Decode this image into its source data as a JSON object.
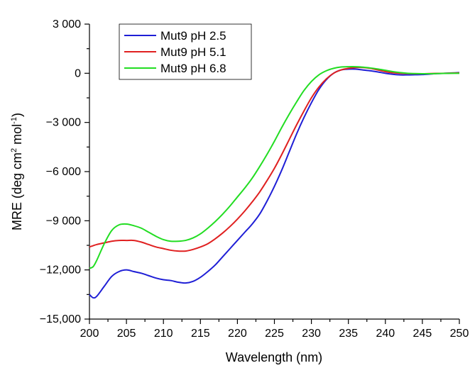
{
  "chart_data": {
    "type": "line",
    "xlabel": "Wavelength (nm)",
    "ylabel_main": "MRE (deg cm",
    "ylabel_sup1": "2",
    "ylabel_mid": " mol",
    "ylabel_sup2": "-1",
    "ylabel_end": ")",
    "xlim": [
      200,
      250
    ],
    "ylim": [
      -15000,
      3000
    ],
    "x_ticks": [
      {
        "value": 200,
        "label": "200"
      },
      {
        "value": 205,
        "label": "205"
      },
      {
        "value": 210,
        "label": "210"
      },
      {
        "value": 215,
        "label": "215"
      },
      {
        "value": 220,
        "label": "220"
      },
      {
        "value": 225,
        "label": "225"
      },
      {
        "value": 230,
        "label": "230"
      },
      {
        "value": 235,
        "label": "235"
      },
      {
        "value": 240,
        "label": "240"
      },
      {
        "value": 245,
        "label": "245"
      },
      {
        "value": 250,
        "label": "250"
      }
    ],
    "y_ticks": [
      {
        "value": 3000,
        "label": "3 000"
      },
      {
        "value": 0,
        "label": "0"
      },
      {
        "value": -3000,
        "label": "−3 000"
      },
      {
        "value": -6000,
        "label": "−6 000"
      },
      {
        "value": -9000,
        "label": "−9 000"
      },
      {
        "value": -12000,
        "label": "−12,000"
      },
      {
        "value": -15000,
        "label": "−15,000"
      }
    ],
    "grid": false,
    "legend_position": "top-left",
    "series": [
      {
        "name": "Mut9 pH 2.5",
        "color": "#1f1fd6",
        "x": [
          200,
          200.5,
          201,
          202,
          203,
          204,
          205,
          206,
          207,
          208,
          209,
          210,
          211,
          212,
          213,
          214,
          215,
          216,
          217,
          218,
          219,
          220,
          221,
          222,
          223,
          224,
          225,
          226,
          227,
          228,
          229,
          230,
          231,
          232,
          233,
          234,
          235,
          236,
          237,
          238,
          239,
          240,
          241,
          242,
          243,
          244,
          245,
          246,
          247,
          248,
          249,
          250
        ],
        "y": [
          -13500,
          -13700,
          -13600,
          -13000,
          -12400,
          -12100,
          -12000,
          -12100,
          -12200,
          -12350,
          -12500,
          -12600,
          -12650,
          -12750,
          -12800,
          -12700,
          -12450,
          -12100,
          -11700,
          -11200,
          -10700,
          -10200,
          -9700,
          -9200,
          -8600,
          -7800,
          -6900,
          -5900,
          -4800,
          -3700,
          -2700,
          -1800,
          -1000,
          -400,
          0,
          200,
          250,
          250,
          200,
          150,
          80,
          0,
          -60,
          -100,
          -100,
          -90,
          -80,
          -50,
          -20,
          0,
          20,
          40
        ]
      },
      {
        "name": "Mut9 pH 5.1",
        "color": "#e02020",
        "x": [
          200,
          201,
          202,
          203,
          204,
          205,
          206,
          207,
          208,
          209,
          210,
          211,
          212,
          213,
          214,
          215,
          216,
          217,
          218,
          219,
          220,
          221,
          222,
          223,
          224,
          225,
          226,
          227,
          228,
          229,
          230,
          231,
          232,
          233,
          234,
          235,
          236,
          237,
          238,
          239,
          240,
          241,
          242,
          243,
          244,
          245,
          246,
          247,
          248,
          249,
          250
        ],
        "y": [
          -10600,
          -10450,
          -10350,
          -10250,
          -10200,
          -10200,
          -10200,
          -10300,
          -10450,
          -10600,
          -10700,
          -10800,
          -10850,
          -10850,
          -10750,
          -10600,
          -10400,
          -10100,
          -9750,
          -9350,
          -8900,
          -8400,
          -7850,
          -7250,
          -6550,
          -5800,
          -4950,
          -4050,
          -3150,
          -2300,
          -1500,
          -850,
          -350,
          0,
          200,
          300,
          350,
          350,
          300,
          200,
          100,
          30,
          0,
          -20,
          -30,
          -30,
          -20,
          -10,
          0,
          10,
          20
        ]
      },
      {
        "name": "Mut9 pH 6.8",
        "color": "#22dd22",
        "x": [
          200,
          200.5,
          201,
          202,
          203,
          204,
          205,
          206,
          207,
          208,
          209,
          210,
          211,
          212,
          213,
          214,
          215,
          216,
          217,
          218,
          219,
          220,
          221,
          222,
          223,
          224,
          225,
          226,
          227,
          228,
          229,
          230,
          231,
          232,
          233,
          234,
          235,
          236,
          237,
          238,
          239,
          240,
          241,
          242,
          243,
          244,
          245,
          246,
          247,
          248,
          249,
          250
        ],
        "y": [
          -11900,
          -11800,
          -11400,
          -10400,
          -9600,
          -9250,
          -9200,
          -9300,
          -9450,
          -9700,
          -9950,
          -10150,
          -10250,
          -10250,
          -10200,
          -10050,
          -9800,
          -9450,
          -9050,
          -8600,
          -8100,
          -7550,
          -7000,
          -6400,
          -5700,
          -4950,
          -4150,
          -3300,
          -2500,
          -1750,
          -1050,
          -500,
          -100,
          150,
          300,
          380,
          400,
          400,
          370,
          320,
          260,
          180,
          100,
          40,
          0,
          -20,
          -30,
          -30,
          -20,
          -10,
          0,
          0
        ]
      }
    ]
  }
}
